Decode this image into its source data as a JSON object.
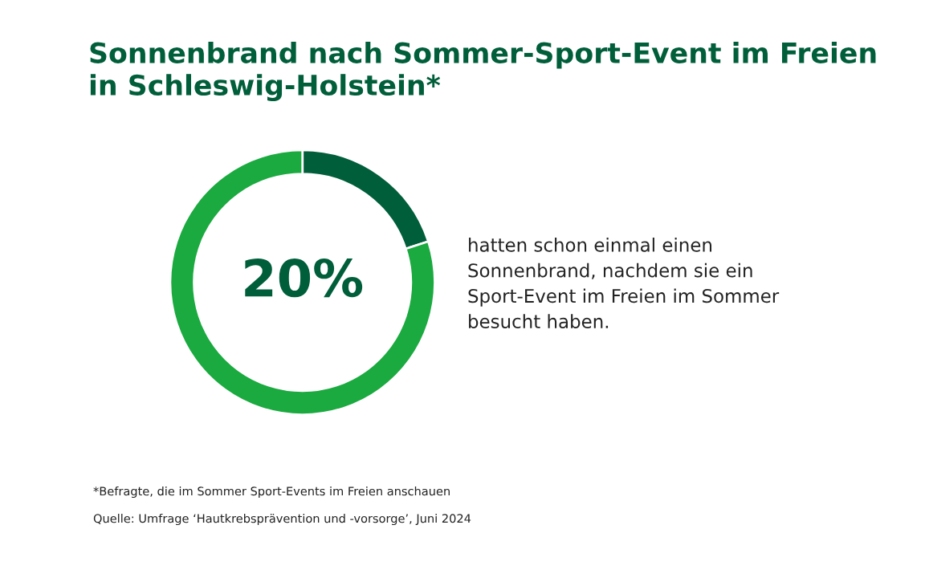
{
  "chart_data": {
    "type": "donut",
    "title": "Sonnenbrand nach Sommer-Sport-Event im Freien\nin Schleswig-Holstein*",
    "categories": [
      null,
      null
    ],
    "values": [
      20,
      80
    ],
    "colors": [
      "#005e3a",
      "#1aaa3f"
    ],
    "value_labels": [
      "20%",
      null
    ],
    "legend": false,
    "annotations": [
      "hatten schon einmal einen\nSonnenbrand, nachdem sie ein\nSport-Event im Freien im Sommer\nbesucht haben.",
      "*Befragte, die im Sommer Sport-Events im Freien anschauen",
      "Quelle: Umfrage ‘Hautkrebsprävention und -vorsorge’, Juni 2024"
    ]
  }
}
